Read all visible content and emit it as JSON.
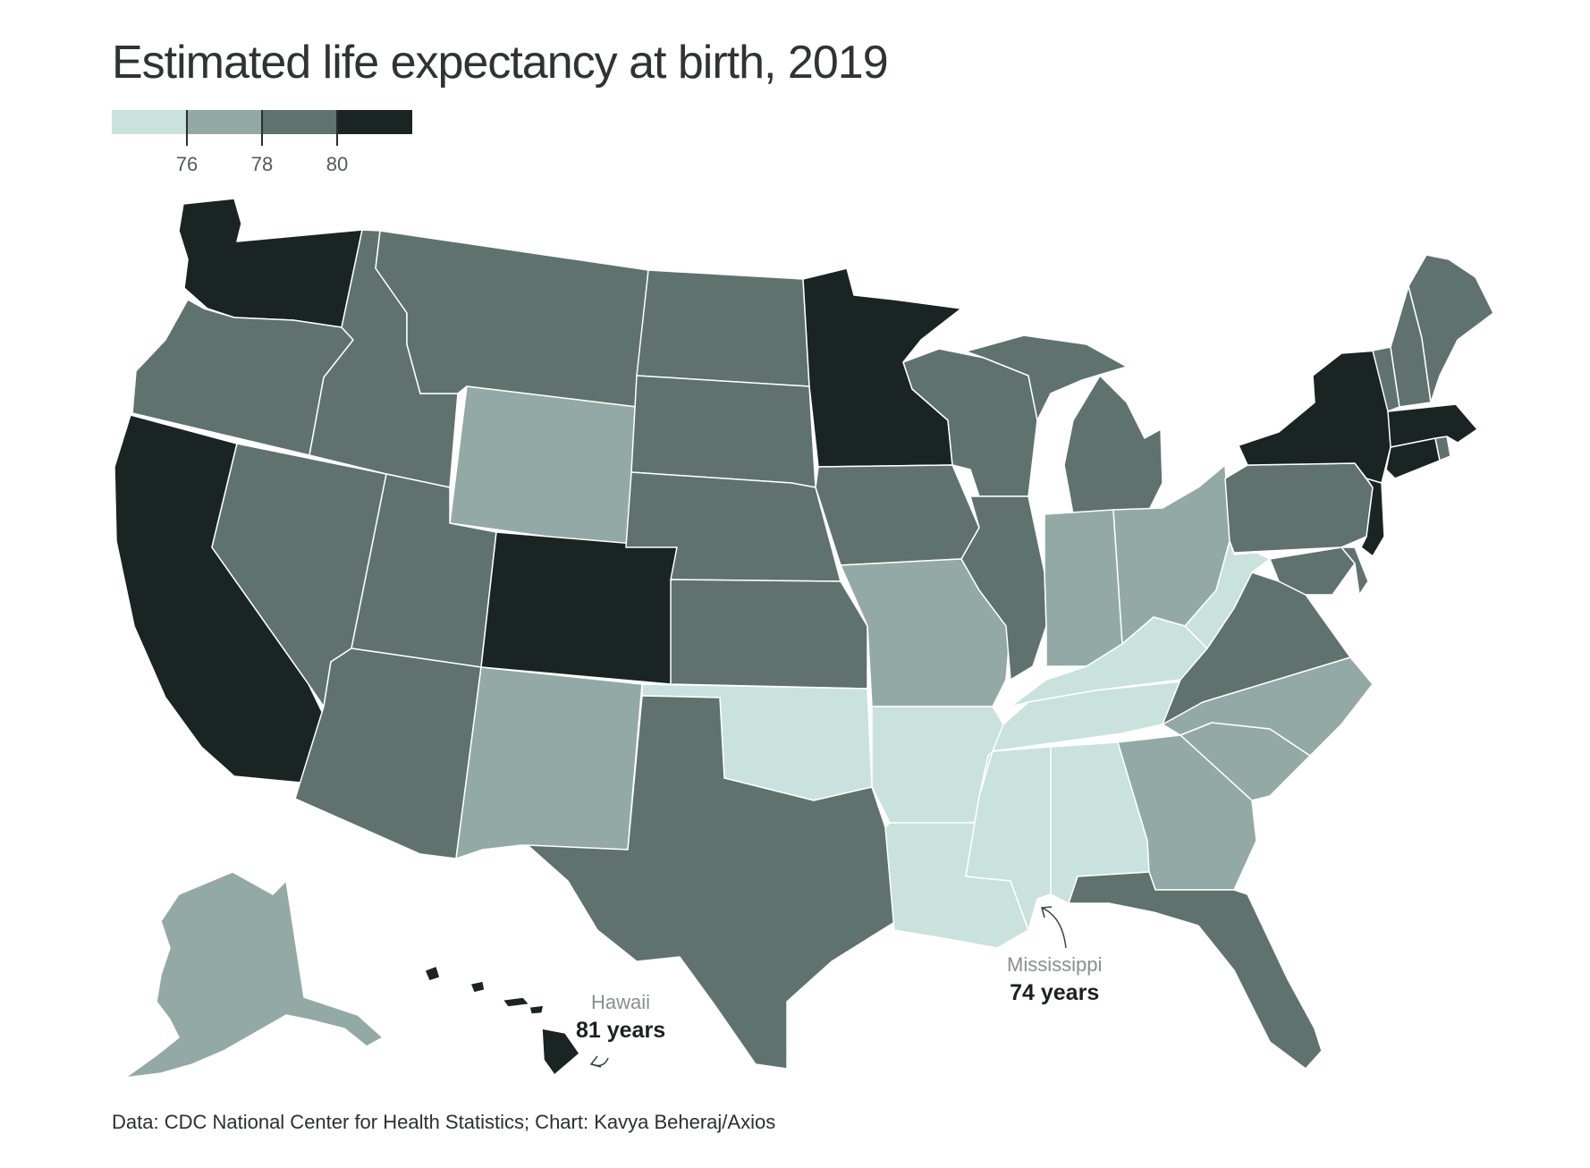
{
  "title": "Estimated life expectancy at birth, 2019",
  "legend": {
    "bins": [
      {
        "label": "< 76",
        "color": "#c9e2dd"
      },
      {
        "label": "76–78",
        "color": "#93a9a5"
      },
      {
        "label": "78–80",
        "color": "#5f726d"
      },
      {
        "label": "> 80",
        "color": "#1a2422"
      }
    ],
    "ticks": [
      "76",
      "78",
      "80"
    ]
  },
  "annotations": {
    "hawaii": {
      "state": "Hawaii",
      "value": "81 years"
    },
    "mississippi": {
      "state": "Mississippi",
      "value": "74 years"
    }
  },
  "source": "Data: CDC National Center for Health Statistics; Chart: Kavya Beheraj/Axios",
  "chart_data": {
    "type": "choropleth",
    "title": "Estimated life expectancy at birth, 2019",
    "unit": "years",
    "thresholds": [
      76,
      78,
      80
    ],
    "states": [
      {
        "state": "Washington",
        "bin": "> 80"
      },
      {
        "state": "Oregon",
        "bin": "78–80"
      },
      {
        "state": "California",
        "bin": "> 80"
      },
      {
        "state": "Nevada",
        "bin": "78–80"
      },
      {
        "state": "Idaho",
        "bin": "78–80"
      },
      {
        "state": "Montana",
        "bin": "78–80"
      },
      {
        "state": "Wyoming",
        "bin": "76–78"
      },
      {
        "state": "Utah",
        "bin": "78–80"
      },
      {
        "state": "Arizona",
        "bin": "78–80"
      },
      {
        "state": "Colorado",
        "bin": "> 80"
      },
      {
        "state": "New Mexico",
        "bin": "76–78"
      },
      {
        "state": "North Dakota",
        "bin": "78–80"
      },
      {
        "state": "South Dakota",
        "bin": "78–80"
      },
      {
        "state": "Nebraska",
        "bin": "78–80"
      },
      {
        "state": "Kansas",
        "bin": "78–80"
      },
      {
        "state": "Oklahoma",
        "bin": "< 76"
      },
      {
        "state": "Texas",
        "bin": "78–80"
      },
      {
        "state": "Minnesota",
        "bin": "> 80"
      },
      {
        "state": "Iowa",
        "bin": "78–80"
      },
      {
        "state": "Missouri",
        "bin": "76–78"
      },
      {
        "state": "Arkansas",
        "bin": "< 76"
      },
      {
        "state": "Louisiana",
        "bin": "< 76"
      },
      {
        "state": "Wisconsin",
        "bin": "78–80"
      },
      {
        "state": "Illinois",
        "bin": "78–80"
      },
      {
        "state": "Michigan",
        "bin": "78–80"
      },
      {
        "state": "Indiana",
        "bin": "76–78"
      },
      {
        "state": "Ohio",
        "bin": "76–78"
      },
      {
        "state": "Kentucky",
        "bin": "< 76"
      },
      {
        "state": "Tennessee",
        "bin": "< 76"
      },
      {
        "state": "Mississippi",
        "bin": "< 76",
        "value": 74
      },
      {
        "state": "Alabama",
        "bin": "< 76"
      },
      {
        "state": "Georgia",
        "bin": "76–78"
      },
      {
        "state": "Florida",
        "bin": "78–80"
      },
      {
        "state": "South Carolina",
        "bin": "76–78"
      },
      {
        "state": "North Carolina",
        "bin": "76–78"
      },
      {
        "state": "Virginia",
        "bin": "78–80"
      },
      {
        "state": "West Virginia",
        "bin": "< 76"
      },
      {
        "state": "Pennsylvania",
        "bin": "78–80"
      },
      {
        "state": "Maryland",
        "bin": "78–80"
      },
      {
        "state": "Delaware",
        "bin": "78–80"
      },
      {
        "state": "New Jersey",
        "bin": "> 80"
      },
      {
        "state": "New York",
        "bin": "> 80"
      },
      {
        "state": "Connecticut",
        "bin": "> 80"
      },
      {
        "state": "Rhode Island",
        "bin": "78–80"
      },
      {
        "state": "Massachusetts",
        "bin": "> 80"
      },
      {
        "state": "Vermont",
        "bin": "78–80"
      },
      {
        "state": "New Hampshire",
        "bin": "78–80"
      },
      {
        "state": "Maine",
        "bin": "78–80"
      },
      {
        "state": "Alaska",
        "bin": "76–78"
      },
      {
        "state": "Hawaii",
        "bin": "> 80",
        "value": 81
      }
    ]
  }
}
